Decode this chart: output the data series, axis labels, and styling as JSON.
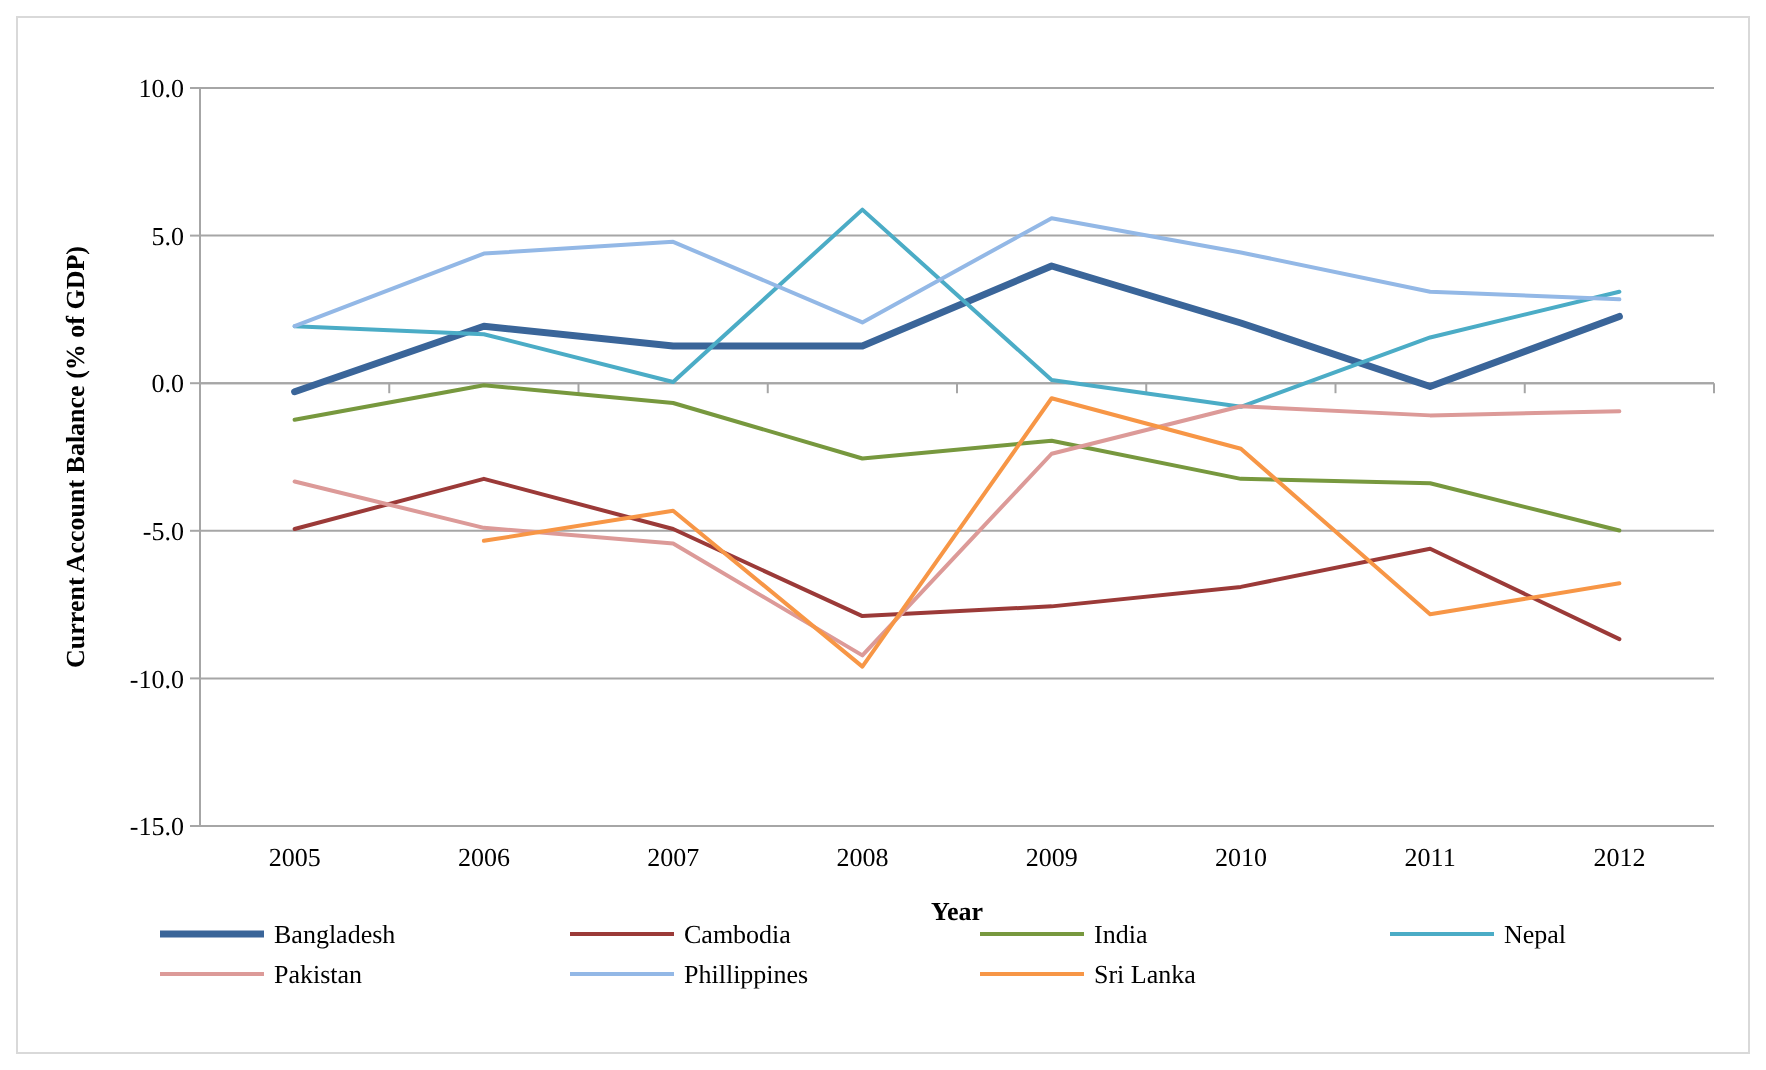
{
  "chart_data": {
    "type": "line",
    "xlabel": "Year",
    "ylabel": "Current Account Balance (% of GDP)",
    "categories": [
      "2005",
      "2006",
      "2007",
      "2008",
      "2009",
      "2010",
      "2011",
      "2012"
    ],
    "ylim": [
      -15,
      10
    ],
    "yticks": [
      {
        "value": -15,
        "label": "-15.0"
      },
      {
        "value": -10,
        "label": "-10.0"
      },
      {
        "value": -5,
        "label": "-5.0"
      },
      {
        "value": 0,
        "label": "0.0"
      },
      {
        "value": 5,
        "label": "5.0"
      },
      {
        "value": 10,
        "label": "10.0"
      }
    ],
    "grid": "y",
    "legend": "bottom",
    "marker": "none",
    "line_style": "solid",
    "series": [
      {
        "name": "Bangladesh",
        "color": "#3a6599",
        "values": [
          -0.29,
          1.93,
          1.26,
          1.26,
          3.97,
          2.04,
          -0.11,
          2.26
        ]
      },
      {
        "name": "Cambodia",
        "color": "#9b3a38",
        "values": [
          -4.94,
          -3.24,
          -4.94,
          -7.89,
          -7.56,
          -6.9,
          -5.61,
          -8.67
        ]
      },
      {
        "name": "India",
        "color": "#77983e",
        "values": [
          -1.24,
          -0.07,
          -0.67,
          -2.55,
          -1.95,
          -3.24,
          -3.39,
          -4.99
        ]
      },
      {
        "name": "Nepal",
        "color": "#4bacc6",
        "values": [
          1.93,
          1.66,
          0.04,
          5.88,
          0.11,
          -0.8,
          1.55,
          3.1
        ]
      },
      {
        "name": "Pakistan",
        "color": "#dc9a98",
        "values": [
          -3.33,
          -4.9,
          -5.43,
          -9.22,
          -2.39,
          -0.78,
          -1.09,
          -0.95
        ]
      },
      {
        "name": "Phillippines",
        "color": "#93b8e6",
        "values": [
          1.93,
          4.39,
          4.79,
          2.06,
          5.59,
          4.43,
          3.1,
          2.84
        ]
      },
      {
        "name": "Sri Lanka",
        "color": "#f79646",
        "values": [
          null,
          -5.34,
          -4.32,
          -9.6,
          -0.51,
          -2.22,
          -7.83,
          -6.78
        ]
      }
    ]
  }
}
